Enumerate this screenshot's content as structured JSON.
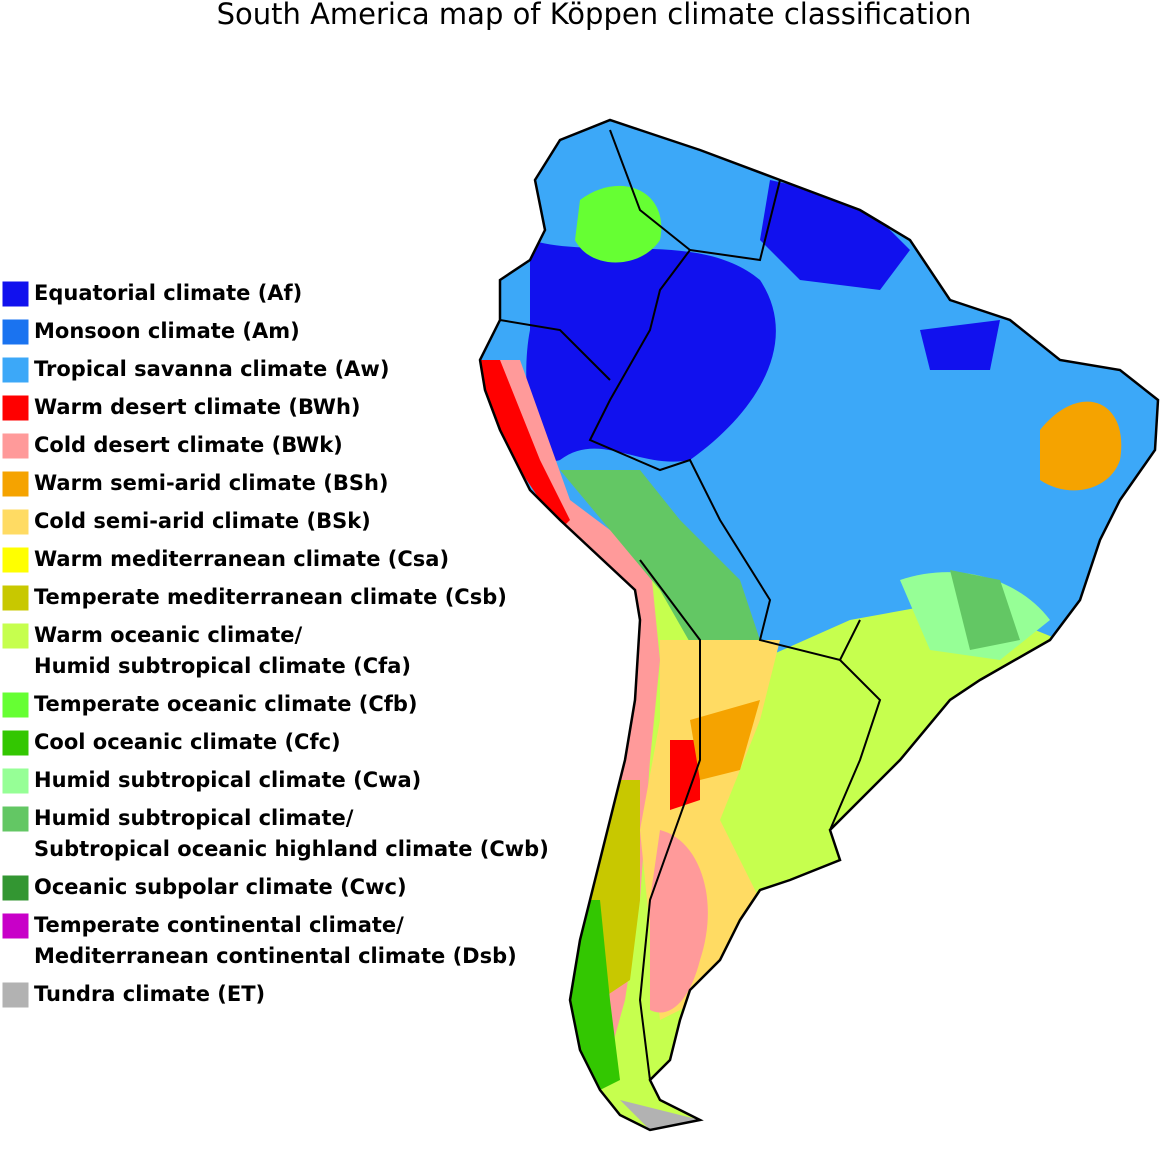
{
  "title": "South America map of Köppen climate classification",
  "legend": [
    {
      "lines": [
        "Equatorial climate (Af)"
      ],
      "color": "#1111ee"
    },
    {
      "lines": [
        "Monsoon climate (Am)"
      ],
      "color": "#1a73f0"
    },
    {
      "lines": [
        "Tropical savanna climate (Aw)"
      ],
      "color": "#3ca8f8"
    },
    {
      "lines": [
        "Warm desert climate (BWh)"
      ],
      "color": "#ff0000"
    },
    {
      "lines": [
        "Cold desert climate (BWk)"
      ],
      "color": "#ff9a9a"
    },
    {
      "lines": [
        "Warm semi-arid climate (BSh)"
      ],
      "color": "#f5a300"
    },
    {
      "lines": [
        "Cold semi-arid climate (BSk)"
      ],
      "color": "#ffdb63"
    },
    {
      "lines": [
        "Warm mediterranean climate (Csa)"
      ],
      "color": "#ffff00"
    },
    {
      "lines": [
        "Temperate mediterranean climate (Csb)"
      ],
      "color": "#c8c800"
    },
    {
      "lines": [
        "Warm oceanic climate/",
        "Humid subtropical climate (Cfa)"
      ],
      "color": "#c6ff4e"
    },
    {
      "lines": [
        "Temperate oceanic climate (Cfb)"
      ],
      "color": "#66ff33"
    },
    {
      "lines": [
        "Cool oceanic climate (Cfc)"
      ],
      "color": "#33c701"
    },
    {
      "lines": [
        "Humid subtropical climate (Cwa)"
      ],
      "color": "#96ff96"
    },
    {
      "lines": [
        "Humid subtropical climate/",
        "Subtropical oceanic highland climate (Cwb)"
      ],
      "color": "#63c764"
    },
    {
      "lines": [
        "Oceanic subpolar climate (Cwc)"
      ],
      "color": "#339632"
    },
    {
      "lines": [
        "Temperate continental climate/",
        "Mediterranean continental climate (Dsb)"
      ],
      "color": "#c800c8"
    },
    {
      "lines": [
        "Tundra climate (ET)"
      ],
      "color": "#b2b2b2"
    }
  ]
}
